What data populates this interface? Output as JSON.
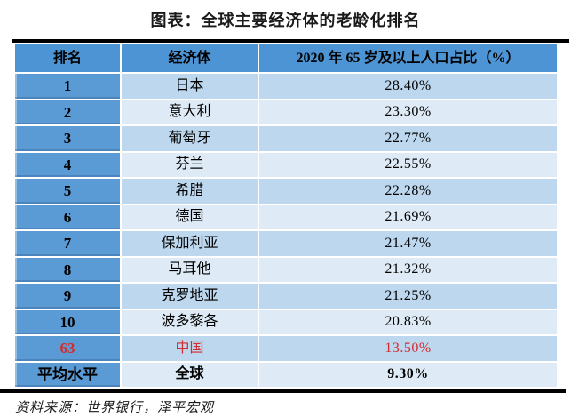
{
  "chart_data": {
    "type": "table",
    "title": "图表：全球主要经济体的老龄化排名",
    "columns": [
      "排名",
      "经济体",
      "2020 年 65 岁及以上人口占比（%）"
    ],
    "rows": [
      {
        "rank": "1",
        "economy": "日本",
        "value": "28.40%"
      },
      {
        "rank": "2",
        "economy": "意大利",
        "value": "23.30%"
      },
      {
        "rank": "3",
        "economy": "葡萄牙",
        "value": "22.77%"
      },
      {
        "rank": "4",
        "economy": "芬兰",
        "value": "22.55%"
      },
      {
        "rank": "5",
        "economy": "希腊",
        "value": "22.28%"
      },
      {
        "rank": "6",
        "economy": "德国",
        "value": "21.69%"
      },
      {
        "rank": "7",
        "economy": "保加利亚",
        "value": "21.47%"
      },
      {
        "rank": "8",
        "economy": "马耳他",
        "value": "21.32%"
      },
      {
        "rank": "9",
        "economy": "克罗地亚",
        "value": "21.25%"
      },
      {
        "rank": "10",
        "economy": "波多黎各",
        "value": "20.83%"
      },
      {
        "rank": "63",
        "economy": "中国",
        "value": "13.50%",
        "highlight": true
      },
      {
        "rank": "平均水平",
        "economy": "全球",
        "value": "9.30%",
        "summary": true
      }
    ],
    "source_note": "资料来源：世界银行，泽平宏观",
    "legend_position": "none",
    "grid": false
  },
  "colors": {
    "header_blue": "#4D94D4",
    "rank_blue": "#5B9BD5",
    "row_shade_dark": "#BDD7EE",
    "row_shade_light": "#DEEBF7",
    "highlight_red": "#D42B2F",
    "rule_black": "#000000"
  }
}
